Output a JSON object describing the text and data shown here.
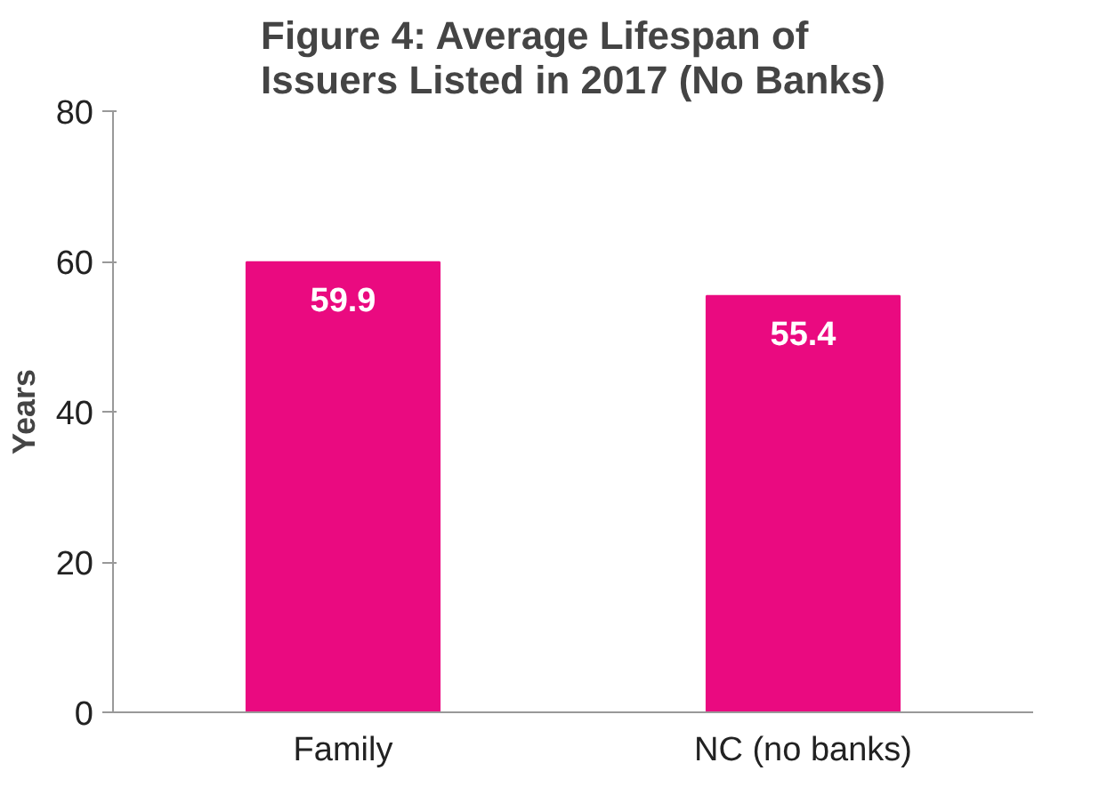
{
  "chart_data": {
    "type": "bar",
    "title": "Figure 4: Average Lifespan of Issuers Listed in 2017 (No Banks)",
    "ylabel": "Years",
    "categories": [
      "Family",
      "NC (no banks)"
    ],
    "values": [
      59.9,
      55.4
    ],
    "color": "#ea0a80",
    "ylim": [
      0,
      80
    ],
    "yticks": [
      0,
      20,
      40,
      60,
      80
    ],
    "grid": false,
    "data_labels": true
  }
}
